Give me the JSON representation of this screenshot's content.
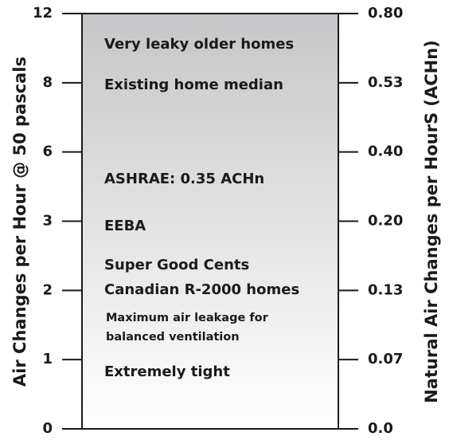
{
  "left_axis": {
    "label": "Air Changes per Hour @ 50 pascals",
    "ticks": [
      "0",
      "1",
      "2",
      "3",
      "6",
      "8",
      "12"
    ]
  },
  "right_axis": {
    "label": "Natural Air Changes per HourS (ACHn)",
    "ticks": [
      "0.0",
      "0.07",
      "0.13",
      "0.20",
      "0.40",
      "0.53",
      "0.80"
    ]
  },
  "annotations": [
    "Very leaky older homes",
    "Existing home median",
    "ASHRAE: 0.35 ACHn",
    "EEBA",
    "Super Good Cents",
    "Canadian R-2000 homes",
    "Maximum air leakage for",
    "balanced ventilation",
    "Extremely tight"
  ]
}
